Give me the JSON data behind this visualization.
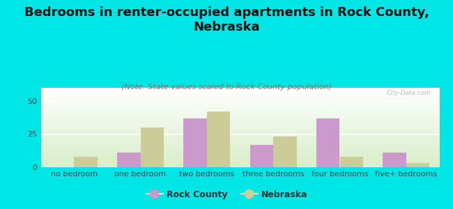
{
  "categories": [
    "no bedroom",
    "one bedroom",
    "two bedrooms",
    "three bedrooms",
    "four bedrooms",
    "five+ bedrooms"
  ],
  "rock_county": [
    0,
    11,
    37,
    17,
    37,
    11
  ],
  "nebraska": [
    8,
    30,
    42,
    23,
    8,
    3
  ],
  "rock_county_color": "#cc99cc",
  "nebraska_color": "#cccc99",
  "title": "Bedrooms in renter-occupied apartments in Rock County,\nNebraska",
  "subtitle": "(Note: State values scaled to Rock County population)",
  "legend_rock_county": "Rock County",
  "legend_nebraska": "Nebraska",
  "ylim": [
    0,
    60
  ],
  "yticks": [
    0,
    25,
    50
  ],
  "background_color": "#00e5e5",
  "plot_bg_top": "#d8eec8",
  "plot_bg_bottom": "#ffffff",
  "bar_width": 0.35,
  "title_fontsize": 13,
  "subtitle_fontsize": 8,
  "tick_fontsize": 8,
  "legend_fontsize": 9
}
